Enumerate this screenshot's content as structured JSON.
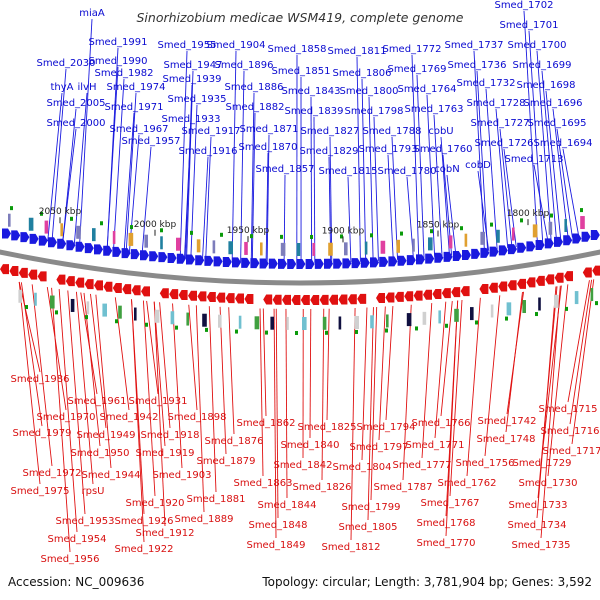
{
  "title": "Sinorhizobium medicae WSM419, complete genome",
  "accession": "Accession: NC_009636",
  "summary": "Topology: circular; Length: 3,781,904 bp; Genes: 3,592",
  "colors": {
    "forward": "#1a1adf",
    "reverse": "#e01010",
    "backbone": "#888888",
    "tick_mark": "#0a9a0a"
  },
  "scale_ticks": [
    "2050 kbp",
    "2000 kbp",
    "1950 kbp",
    "1900 kbp",
    "1850 kbp",
    "1800 kbp"
  ],
  "forward_labels": [
    "miaA",
    "Smed_2030",
    "thyA",
    "ilvH",
    "Smed_2005",
    "Smed_2000",
    "Smed_1991",
    "Smed_1990",
    "Smed_1982",
    "Smed_1974",
    "Smed_1971",
    "Smed_1967",
    "Smed_1957",
    "Smed_1955",
    "Smed_1947",
    "Smed_1939",
    "Smed_1935",
    "Smed_1933",
    "Smed_1917",
    "Smed_1916",
    "Smed_1904",
    "Smed_1896",
    "Smed_1886",
    "Smed_1882",
    "Smed_1871",
    "Smed_1870",
    "Smed_1858",
    "Smed_1851",
    "Smed_1843",
    "Smed_1839",
    "Smed_1857",
    "Smed_1811",
    "Smed_1806",
    "Smed_1800",
    "Smed_1798",
    "Smed_1827",
    "Smed_1829",
    "Smed_1815",
    "Smed_1772",
    "Smed_1769",
    "Smed_1764",
    "Smed_1763",
    "Smed_1788",
    "Smed_1793",
    "Smed_1780",
    "cobU",
    "cobN",
    "Smed_1760",
    "Smed_1737",
    "Smed_1736",
    "Smed_1732",
    "Smed_1728",
    "Smed_1727",
    "Smed_1726",
    "cobD",
    "Smed_1713",
    "Smed_1702",
    "Smed_1701",
    "Smed_1700",
    "Smed_1699",
    "Smed_1698",
    "Smed_1696",
    "Smed_1695",
    "Smed_1694"
  ],
  "reverse_labels": [
    "Smed_1986",
    "Smed_1961",
    "Smed_1970",
    "Smed_1979",
    "Smed_1942",
    "Smed_1931",
    "Smed_1949",
    "Smed_1950",
    "Smed_1972",
    "Smed_1944",
    "Smed_1975",
    "rpsU",
    "Smed_1953",
    "Smed_1954",
    "Smed_1956",
    "Smed_1898",
    "Smed_1918",
    "Smed_1919",
    "Smed_1920",
    "Smed_1926",
    "Smed_1922",
    "Smed_1912",
    "Smed_1903",
    "Smed_1881",
    "Smed_1889",
    "Smed_1876",
    "Smed_1879",
    "Smed_1862",
    "Smed_1840",
    "Smed_1842",
    "Smed_1863",
    "Smed_1844",
    "Smed_1848",
    "Smed_1849",
    "Smed_1825",
    "Smed_1826",
    "Smed_1794",
    "Smed_1797",
    "Smed_1804",
    "Smed_1799",
    "Smed_1805",
    "Smed_1812",
    "Smed_1787",
    "Smed_1766",
    "Smed_1771",
    "Smed_1777",
    "Smed_1767",
    "Smed_1768",
    "Smed_1770",
    "Smed_1762",
    "Smed_1756",
    "Smed_1742",
    "Smed_1748",
    "Smed_1729",
    "Smed_1730",
    "Smed_1733",
    "Smed_1734",
    "Smed_1735",
    "Smed_1715",
    "Smed_1716",
    "Smed_1717"
  ]
}
